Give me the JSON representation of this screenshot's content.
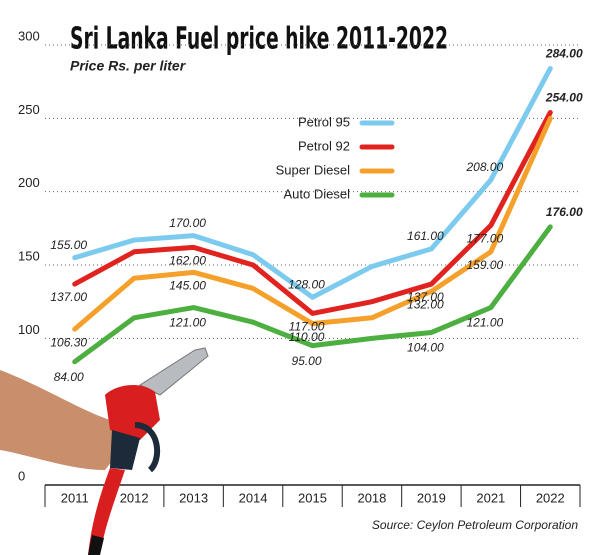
{
  "chart_data": {
    "type": "line",
    "title": "Sri Lanka Fuel price hike 2011-2022",
    "subtitle": "Price Rs. per liter",
    "source": "Source: Ceylon Petroleum Corporation",
    "categories": [
      "2011",
      "2012",
      "2013",
      "2014",
      "2015",
      "2018",
      "2019",
      "2021",
      "2022"
    ],
    "series": [
      {
        "name": "Petrol 95",
        "color": "#7ccbee",
        "values": [
          155,
          167,
          170,
          157,
          128,
          149,
          161,
          208,
          284
        ],
        "value_labels": [
          "155.00",
          null,
          "170.00",
          null,
          "128.00",
          null,
          "161.00",
          "208.00",
          "284.00"
        ]
      },
      {
        "name": "Petrol 92",
        "color": "#e0231f",
        "values": [
          137,
          159,
          162,
          150,
          117,
          125,
          137,
          177,
          254
        ],
        "value_labels": [
          "137.00",
          null,
          "162.00",
          null,
          "117.00",
          null,
          "137.00",
          "177.00",
          "254.00"
        ]
      },
      {
        "name": "Super Diesel",
        "color": "#f5a02a",
        "values": [
          106.3,
          141,
          145,
          134,
          110,
          114,
          132,
          159,
          250
        ],
        "value_labels": [
          "106.30",
          null,
          "145.00",
          null,
          "110.00",
          null,
          "132.00",
          "159.00",
          null
        ]
      },
      {
        "name": "Auto Diesel",
        "color": "#4caf3f",
        "values": [
          84,
          114,
          121,
          111,
          95,
          100,
          104,
          121,
          176
        ],
        "value_labels": [
          "84.00",
          null,
          "121.00",
          null,
          "95.00",
          null,
          "104.00",
          "121.00",
          "176.00"
        ]
      }
    ],
    "ylim": [
      0,
      300
    ],
    "yticks": [
      0,
      100,
      150,
      200,
      250,
      300
    ],
    "grid": true
  }
}
